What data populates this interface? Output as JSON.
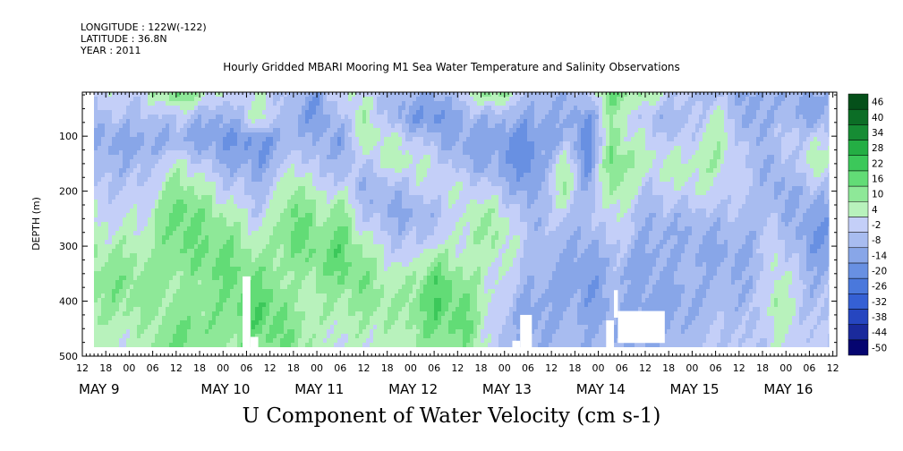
{
  "meta_lines": [
    {
      "label": "LONGITUDE : 122W(-122)"
    },
    {
      "label": "LATITUDE : 36.8N"
    },
    {
      "label": "YEAR : 2011"
    }
  ],
  "chart_data": {
    "type": "heatmap",
    "title": "Hourly Gridded MBARI Mooring M1 Sea Water Temperature and Salinity Observations",
    "footer_title": "U Component of Water Velocity (cm s-1)",
    "ylabel": "DEPTH (m)",
    "ylim": [
      500,
      20
    ],
    "y_reversed": true,
    "y_ticks": [
      100,
      200,
      300,
      400,
      500
    ],
    "x_start": "2011-05-08 12:00",
    "x_end": "2011-05-16 13:00",
    "x_hour_ticks": [
      "12",
      "18",
      "00",
      "06",
      "12",
      "18",
      "00",
      "06",
      "12",
      "18",
      "00",
      "06",
      "12",
      "18",
      "00",
      "06",
      "12",
      "18",
      "00",
      "06",
      "12",
      "18",
      "00",
      "06",
      "12",
      "18",
      "00",
      "06",
      "12",
      "18",
      "00",
      "06",
      "12"
    ],
    "x_day_labels": [
      "MAY  9",
      "MAY 10",
      "MAY 11",
      "MAY 12",
      "MAY 13",
      "MAY 14",
      "MAY 15",
      "MAY 16"
    ],
    "data_extent": {
      "x_start": "2011-05-08 15:00",
      "x_end": "2011-05-16 11:00",
      "depth_top": 20,
      "depth_bottom": 484
    },
    "colorbar": {
      "levels": [
        -50,
        -44,
        -38,
        -32,
        -26,
        -20,
        -14,
        -8,
        -2,
        4,
        10,
        16,
        22,
        28,
        34,
        40,
        46
      ],
      "labels": [
        "46",
        "40",
        "34",
        "28",
        "22",
        "16",
        "10",
        "4",
        "-2",
        "-8",
        "-14",
        "-20",
        "-26",
        "-32",
        "-38",
        "-44",
        "-50"
      ],
      "colors_low_to_high": [
        "#050570",
        "#1a2a9c",
        "#2646c0",
        "#3560d4",
        "#4a78dc",
        "#6890e2",
        "#88a6e8",
        "#a8bcf0",
        "#c4cff8",
        "#b8f2bc",
        "#8ee898",
        "#62dc76",
        "#3cc85a",
        "#24ae44",
        "#168c34",
        "#0c6e26",
        "#05501a"
      ]
    },
    "bands": [
      {
        "t": "2011-05-09 03:00",
        "u": [
          2,
          -4,
          -10,
          -6,
          -2,
          2,
          6,
          10,
          14,
          12,
          8,
          6
        ]
      },
      {
        "t": "2011-05-09 12:00",
        "u": [
          16,
          -2,
          -8,
          6,
          14,
          20,
          18,
          14,
          10,
          12,
          16,
          18
        ]
      },
      {
        "t": "2011-05-10 00:00",
        "u": [
          0,
          -10,
          -14,
          -8,
          0,
          8,
          14,
          18,
          16,
          14,
          12,
          10
        ]
      },
      {
        "t": "2011-05-10 09:00",
        "u": [
          4,
          8,
          -16,
          -12,
          -6,
          -2,
          4,
          10,
          16,
          22,
          20,
          14
        ]
      },
      {
        "t": "2011-05-10 18:00",
        "u": [
          -6,
          -10,
          -4,
          4,
          12,
          18,
          20,
          14,
          8,
          10,
          14,
          16
        ]
      },
      {
        "t": "2011-05-11 00:00",
        "u": [
          -12,
          -14,
          -8,
          -4,
          2,
          8,
          14,
          16,
          12,
          8,
          6,
          4
        ]
      },
      {
        "t": "2011-05-11 06:00",
        "u": [
          6,
          -2,
          -12,
          -6,
          2,
          12,
          18,
          20,
          16,
          10,
          6,
          4
        ]
      },
      {
        "t": "2011-05-11 12:00",
        "u": [
          2,
          8,
          10,
          -2,
          -8,
          -4,
          4,
          10,
          14,
          12,
          8,
          6
        ]
      },
      {
        "t": "2011-05-11 21:00",
        "u": [
          -6,
          -10,
          4,
          8,
          -4,
          -10,
          -6,
          0,
          6,
          10,
          8,
          6
        ]
      },
      {
        "t": "2011-05-12 06:00",
        "u": [
          -10,
          -16,
          -6,
          2,
          4,
          -4,
          -2,
          10,
          20,
          22,
          18,
          12
        ]
      },
      {
        "t": "2011-05-12 15:00",
        "u": [
          4,
          -6,
          -12,
          -8,
          2,
          6,
          8,
          6,
          10,
          14,
          16,
          12
        ]
      },
      {
        "t": "2011-05-12 21:00",
        "u": [
          14,
          -6,
          -12,
          -10,
          -2,
          8,
          12,
          8,
          4,
          2,
          0,
          -2
        ]
      },
      {
        "t": "2011-05-13 06:00",
        "u": [
          -4,
          -10,
          -16,
          -18,
          -14,
          -8,
          -4,
          -2,
          -6,
          -10,
          -12,
          -8
        ]
      },
      {
        "t": "2011-05-13 15:00",
        "u": [
          -6,
          -8,
          -4,
          8,
          10,
          2,
          -4,
          -8,
          -10,
          -8,
          -6,
          -4
        ]
      },
      {
        "t": "2011-05-13 21:00",
        "u": [
          -2,
          -14,
          -18,
          -16,
          -10,
          -6,
          -8,
          -12,
          -14,
          -12,
          -8,
          -6
        ]
      },
      {
        "t": "2011-05-14 03:00",
        "u": [
          16,
          10,
          12,
          18,
          14,
          6,
          2,
          -4,
          -6,
          -8,
          -8,
          -6
        ]
      },
      {
        "t": "2011-05-14 12:00",
        "u": [
          8,
          -4,
          2,
          6,
          -2,
          -6,
          -8,
          -10,
          -10,
          -12,
          -10,
          -8
        ]
      },
      {
        "t": "2011-05-14 21:00",
        "u": [
          -2,
          -6,
          -2,
          6,
          4,
          -4,
          -8,
          -6,
          -8,
          -10,
          -8,
          -6
        ]
      },
      {
        "t": "2011-05-15 06:00",
        "u": [
          -4,
          6,
          10,
          8,
          4,
          -2,
          -8,
          -10,
          -6,
          -4,
          -2,
          0
        ]
      },
      {
        "t": "2011-05-15 15:00",
        "u": [
          -10,
          -12,
          -8,
          -4,
          -2,
          -4,
          -6,
          -8,
          -8,
          -6,
          -4,
          -2
        ]
      },
      {
        "t": "2011-05-15 21:00",
        "u": [
          -6,
          -4,
          -2,
          -8,
          -10,
          -6,
          0,
          4,
          8,
          10,
          6,
          4
        ]
      },
      {
        "t": "2011-05-16 06:00",
        "u": [
          -8,
          -10,
          2,
          6,
          -4,
          -10,
          -14,
          -10,
          -6,
          -4,
          -2,
          0
        ]
      }
    ]
  }
}
